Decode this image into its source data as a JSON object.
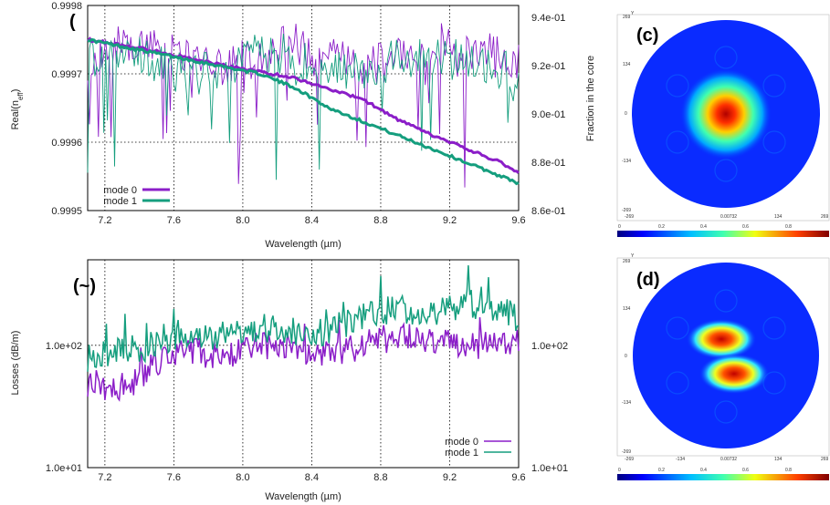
{
  "panels": {
    "c": "(c)",
    "d": "(d)",
    "a": "(",
    "b": "(~)"
  },
  "chart_data": [
    {
      "type": "line",
      "xlabel": "Wavelength (µm)",
      "ylabel": "Real(n",
      "ylabel_sub": "eff",
      "ylabel_close": ")",
      "y2label": "Fraction in the core",
      "xlim": [
        7.1,
        9.6
      ],
      "ylim": [
        0.9995,
        0.9998
      ],
      "y2lim": [
        0.86,
        0.945
      ],
      "x_ticks": [
        "7.2",
        "7.6",
        "8.0",
        "8.4",
        "8.8",
        "9.2",
        "9.6"
      ],
      "y_ticks": [
        "0.9995",
        "0.9996",
        "0.9997",
        "0.9998"
      ],
      "y2_ticks": [
        "8.6e-01",
        "8.8e-01",
        "9.0e-01",
        "9.2e-01",
        "9.4e-01"
      ],
      "grid": true,
      "legend": "bottom-left",
      "colors": {
        "mode0": "#8B1EC8",
        "mode1": "#159E7E"
      },
      "series": [
        {
          "name": "mode 0",
          "x": [
            7.1,
            7.3,
            7.5,
            7.7,
            7.9,
            8.1,
            8.3,
            8.5,
            8.7,
            8.9,
            9.1,
            9.3,
            9.5,
            9.6
          ],
          "values": [
            0.99975,
            0.999742,
            0.999733,
            0.999722,
            0.999712,
            0.999703,
            0.999694,
            0.999678,
            0.999662,
            0.999633,
            0.99961,
            0.99959,
            0.99957,
            0.999555
          ]
        },
        {
          "name": "mode 1",
          "x": [
            7.1,
            7.3,
            7.5,
            7.7,
            7.9,
            8.1,
            8.3,
            8.5,
            8.7,
            8.9,
            9.1,
            9.3,
            9.5,
            9.6
          ],
          "values": [
            0.99975,
            0.99974,
            0.99973,
            0.99972,
            0.99971,
            0.9997,
            0.99968,
            0.99965,
            0.99963,
            0.99961,
            0.99959,
            0.99957,
            0.99955,
            0.99954
          ]
        }
      ]
    },
    {
      "type": "line",
      "xlabel": "Wavelength (µm)",
      "ylabel": "Losses (dB/m)",
      "xlim": [
        7.1,
        9.6
      ],
      "y_scale": "log",
      "ylim": [
        10,
        500
      ],
      "x_ticks": [
        "7.2",
        "7.6",
        "8.0",
        "8.4",
        "8.8",
        "9.2",
        "9.6"
      ],
      "y_ticks": [
        "1.0e+01",
        "1.0e+02"
      ],
      "y2_ticks": [
        "1.0e+01",
        "1.0e+02"
      ],
      "grid": true,
      "legend": "bottom-right",
      "colors": {
        "mode0": "#8B1EC8",
        "mode1": "#159E7E"
      },
      "series": [
        {
          "name": "mode 0",
          "x": [
            7.1,
            7.3,
            7.5,
            7.7,
            7.9,
            8.1,
            8.3,
            8.5,
            8.7,
            8.9,
            9.1,
            9.3,
            9.5,
            9.6
          ],
          "values": [
            50,
            40,
            70,
            90,
            80,
            100,
            95,
            85,
            100,
            120,
            110,
            95,
            100,
            105
          ]
        },
        {
          "name": "mode 1",
          "x": [
            7.1,
            7.3,
            7.5,
            7.7,
            7.9,
            8.1,
            8.3,
            8.5,
            8.7,
            8.9,
            9.1,
            9.3,
            9.5,
            9.6
          ],
          "values": [
            80,
            90,
            100,
            130,
            110,
            140,
            130,
            130,
            170,
            200,
            180,
            220,
            200,
            160
          ]
        }
      ]
    }
  ],
  "mode_maps": {
    "c": {
      "x_ticks": [
        "-269",
        "0.00732",
        "134",
        "269"
      ],
      "y_ticks": [
        "269",
        "134",
        "0",
        "-134",
        "-269"
      ],
      "y_axis": "Y",
      "cbar_ticks": [
        "0",
        "0.2",
        "0.4",
        "0.6",
        "0.8"
      ]
    },
    "d": {
      "x_ticks": [
        "-269",
        "-134",
        "0.00732",
        "134",
        "269"
      ],
      "y_ticks": [
        "269",
        "134",
        "0",
        "-134",
        "-269"
      ],
      "y_axis": "Y",
      "cbar_ticks": [
        "0",
        "0.2",
        "0.4",
        "0.6",
        "0.8"
      ]
    }
  }
}
